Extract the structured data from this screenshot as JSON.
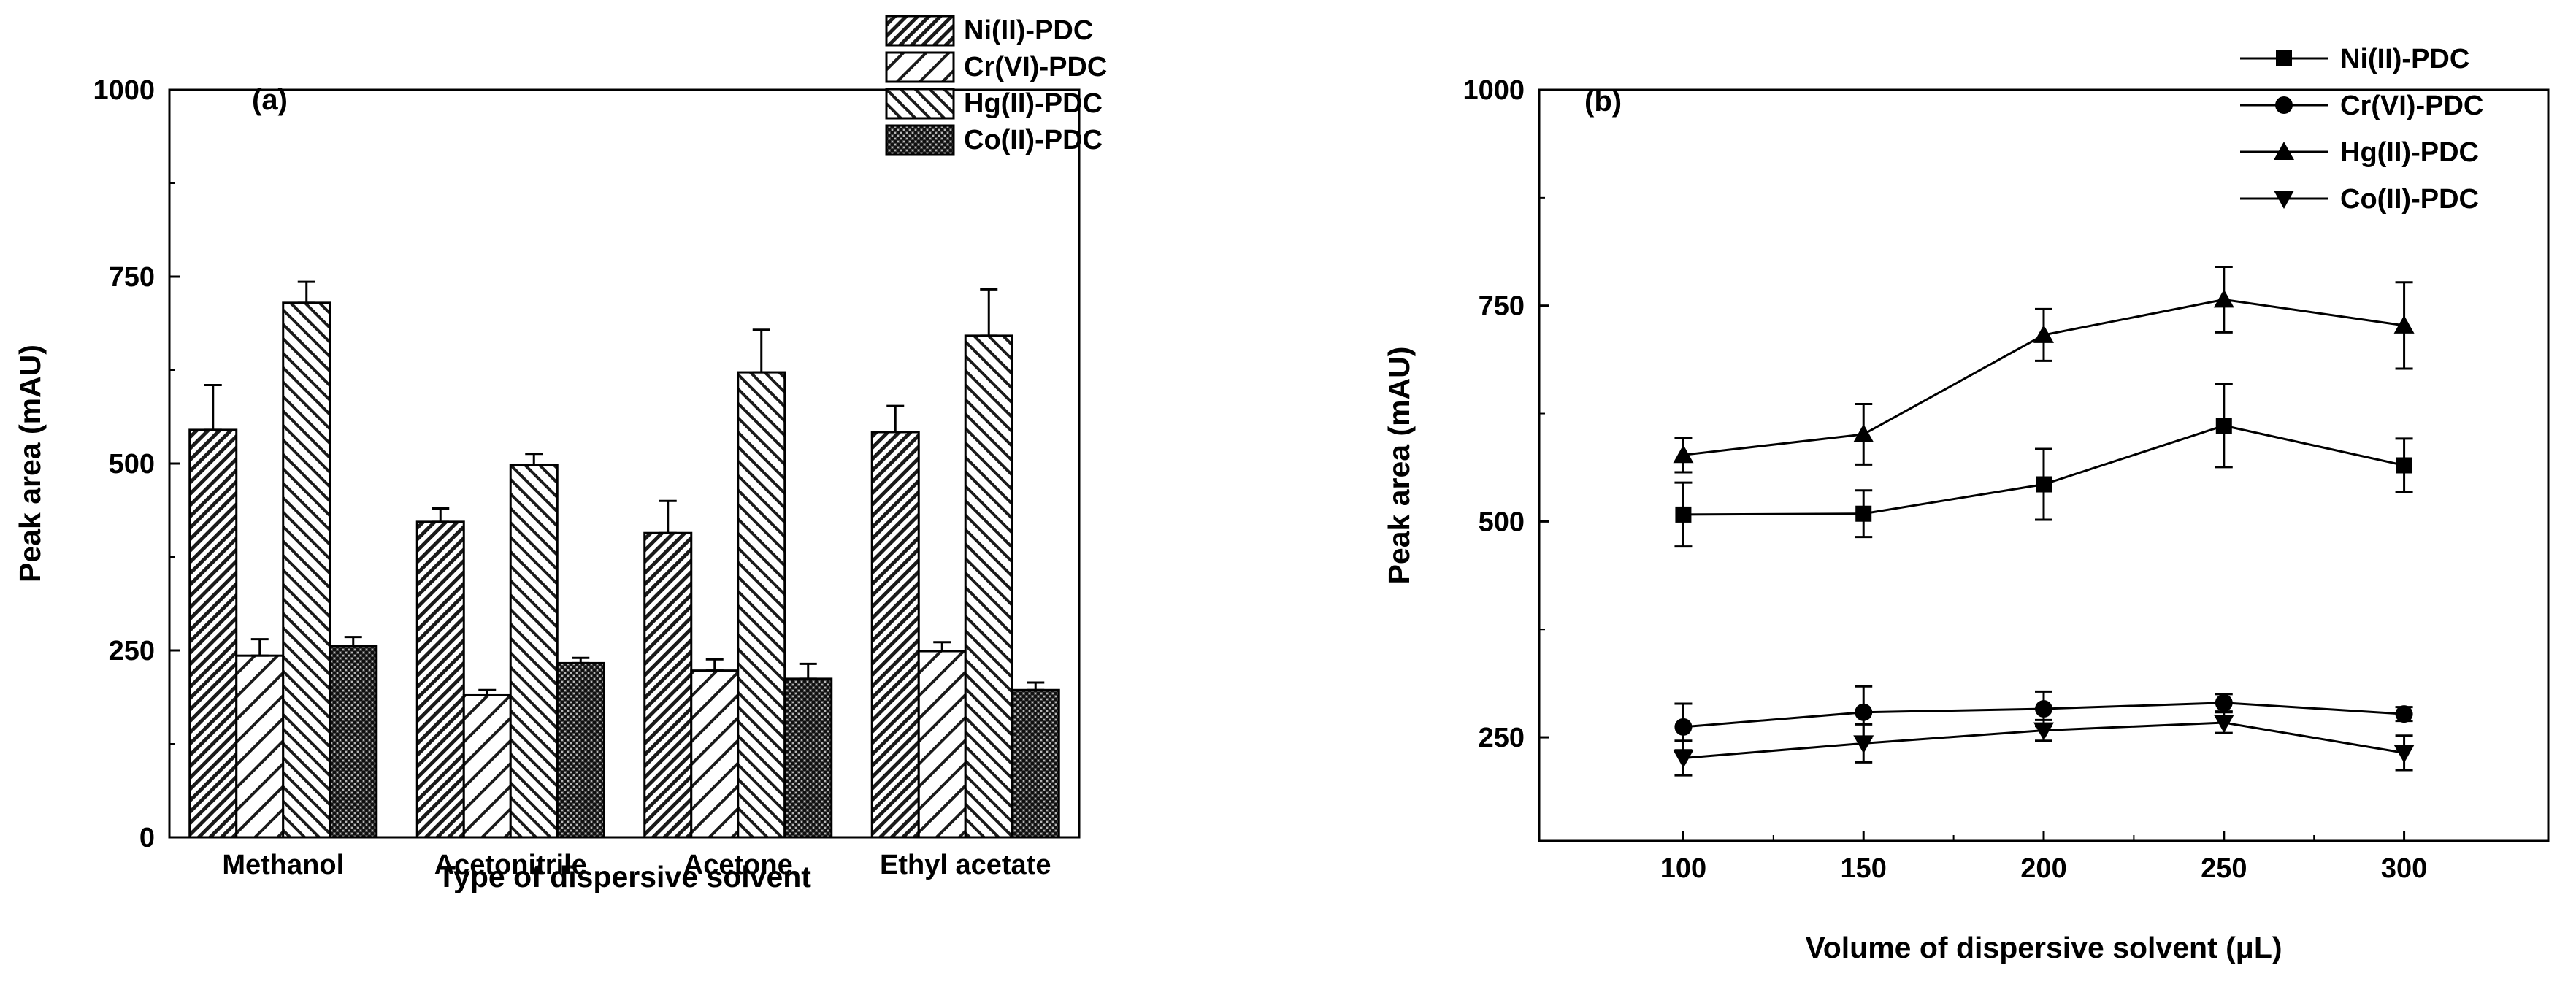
{
  "chart_data": [
    {
      "panel_label": "(a)",
      "type": "bar",
      "xlabel": "Type of dispersive solvent",
      "ylabel": "Peak area (mAU)",
      "ylim": [
        0,
        1000
      ],
      "yticks": [
        0,
        250,
        500,
        750,
        1000
      ],
      "categories": [
        "Methanol",
        "Acetonitrile",
        "Acetone",
        "Ethyl acetate"
      ],
      "series": [
        {
          "name": "Ni(II)-PDC",
          "pattern": "dense-diagonal",
          "values": [
            545,
            422,
            407,
            542
          ],
          "errors": [
            60,
            18,
            43,
            35
          ]
        },
        {
          "name": "Cr(VI)-PDC",
          "pattern": "sparse-diagonal",
          "values": [
            243,
            190,
            223,
            249
          ],
          "errors": [
            22,
            7,
            15,
            12
          ]
        },
        {
          "name": "Hg(II)-PDC",
          "pattern": "back-diagonal",
          "values": [
            715,
            498,
            622,
            671
          ],
          "errors": [
            28,
            15,
            57,
            62
          ]
        },
        {
          "name": "Co(II)-PDC",
          "pattern": "crosshatch",
          "values": [
            256,
            233,
            212,
            197
          ],
          "errors": [
            12,
            7,
            20,
            10
          ]
        }
      ],
      "legend": "top-right"
    },
    {
      "panel_label": "(b)",
      "type": "line",
      "xlabel": "Volume of dispersive solvent (μL)",
      "ylabel": "Peak area (mAU)",
      "xlim": [
        60,
        340
      ],
      "ylim": [
        130,
        1000
      ],
      "xticks": [
        100,
        150,
        200,
        250,
        300
      ],
      "yticks": [
        250,
        500,
        750,
        1000
      ],
      "x": [
        100,
        150,
        200,
        250,
        300
      ],
      "series": [
        {
          "name": "Ni(II)-PDC",
          "marker": "square",
          "values": [
            508,
            509,
            543,
            611,
            565
          ],
          "errors": [
            37,
            27,
            41,
            48,
            31
          ]
        },
        {
          "name": "Cr(VI)-PDC",
          "marker": "circle",
          "values": [
            262,
            279,
            283,
            290,
            277
          ],
          "errors": [
            27,
            30,
            20,
            10,
            8
          ]
        },
        {
          "name": "Hg(II)-PDC",
          "marker": "triangle-up",
          "values": [
            577,
            601,
            716,
            757,
            727
          ],
          "errors": [
            20,
            35,
            30,
            38,
            50
          ]
        },
        {
          "name": "Co(II)-PDC",
          "marker": "triangle-down",
          "values": [
            226,
            243,
            258,
            267,
            232
          ],
          "errors": [
            20,
            22,
            12,
            12,
            20
          ]
        }
      ],
      "legend": "top-right"
    }
  ]
}
